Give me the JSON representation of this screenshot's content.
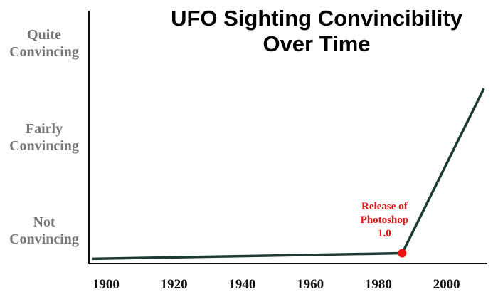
{
  "chart_data": {
    "type": "line",
    "title": [
      "UFO Sighting Convincibility",
      "Over Time"
    ],
    "x": [
      1896,
      1987,
      2011
    ],
    "series": [
      {
        "color": "#1d3a34",
        "values": [
          0.7,
          0.76,
          2.52
        ]
      }
    ],
    "xlim": [
      1895,
      2012
    ],
    "xticks": [
      1900,
      1920,
      1940,
      1960,
      1980,
      2000
    ],
    "ylim": [
      0.65,
      3.35
    ],
    "yticks": [
      {
        "value": 1,
        "label": "Not Convincing"
      },
      {
        "value": 2,
        "label": "Fairly Convincing"
      },
      {
        "value": 3,
        "label": "Quite Convincing"
      }
    ],
    "grid": false,
    "annotation": {
      "text": "Release of Photoshop 1.0",
      "x": 1987,
      "y": 0.76,
      "color": "#ee1111"
    }
  }
}
